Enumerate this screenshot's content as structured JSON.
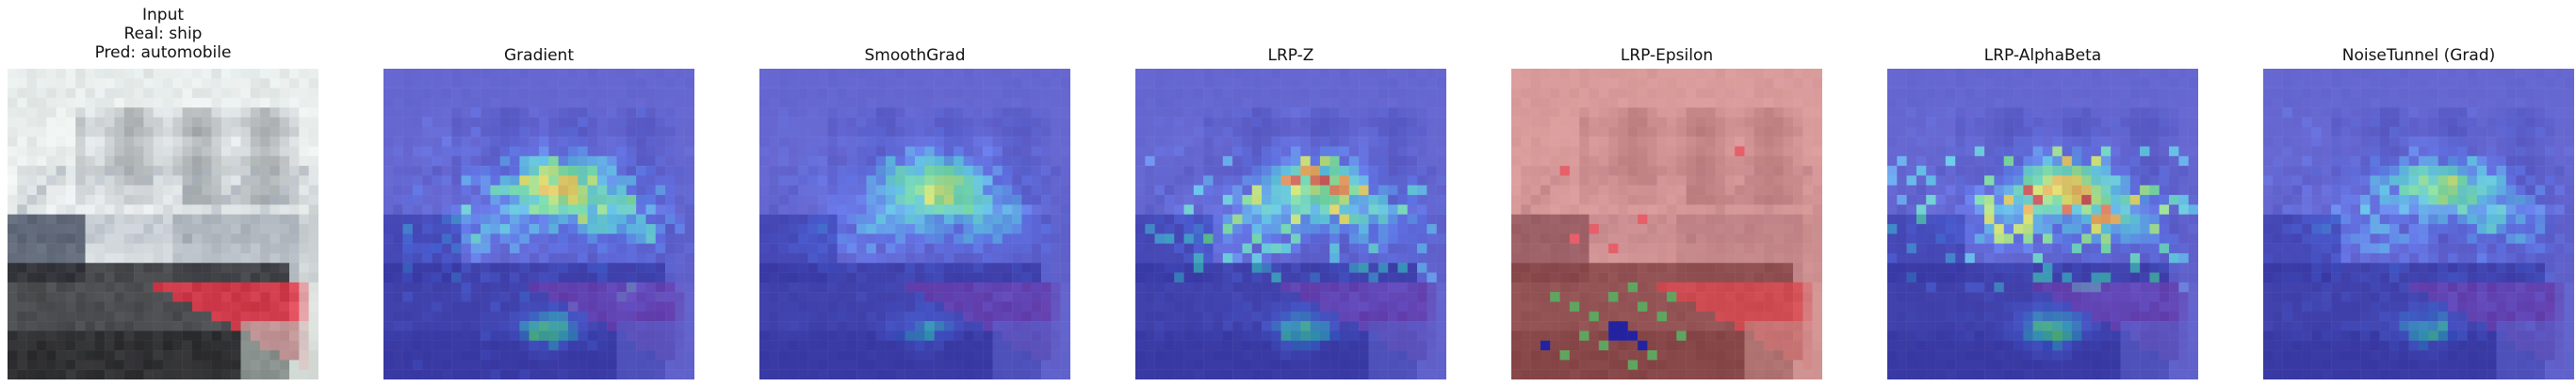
{
  "panels": [
    {
      "id": "input",
      "title_lines": [
        "Input",
        "Real: ship",
        "Pred: automobile"
      ],
      "mode": "input"
    },
    {
      "id": "gradient",
      "title_lines": [
        "Gradient"
      ],
      "mode": "gradient"
    },
    {
      "id": "smoothgrad",
      "title_lines": [
        "SmoothGrad"
      ],
      "mode": "smoothgrad"
    },
    {
      "id": "lrp-z",
      "title_lines": [
        "LRP-Z"
      ],
      "mode": "lrpz"
    },
    {
      "id": "lrp-epsilon",
      "title_lines": [
        "LRP-Epsilon"
      ],
      "mode": "epsilon"
    },
    {
      "id": "lrp-alphabeta",
      "title_lines": [
        "LRP-AlphaBeta"
      ],
      "mode": "alphabeta"
    },
    {
      "id": "noisetunnel-grad",
      "title_lines": [
        "NoiseTunnel (Grad)"
      ],
      "mode": "noisetunnel"
    }
  ]
}
